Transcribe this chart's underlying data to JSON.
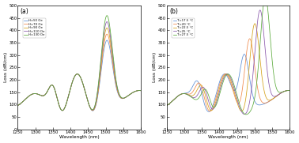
{
  "panel_a": {
    "label": "(a)",
    "xlabel": "Wavelength (nm)",
    "ylabel": "Loss (dB/cm)",
    "xlim": [
      1250,
      1600
    ],
    "ylim": [
      0,
      500
    ],
    "yticks": [
      0,
      50,
      100,
      150,
      200,
      250,
      300,
      350,
      400,
      450,
      500
    ],
    "xticks": [
      1250,
      1300,
      1350,
      1400,
      1450,
      1500,
      1550,
      1600
    ],
    "series": [
      {
        "label": "H=50 Oe",
        "color": "#5b8ed6",
        "amp_shift": 0.0
      },
      {
        "label": "H=70 Oe",
        "color": "#f0894a",
        "amp_shift": 1.0
      },
      {
        "label": "H=90 Oe",
        "color": "#d4a017",
        "amp_shift": 2.0
      },
      {
        "label": "H=110 Oe",
        "color": "#8855aa",
        "amp_shift": 3.0
      },
      {
        "label": "H=130 Oe",
        "color": "#5aaa3a",
        "amp_shift": 4.0
      }
    ]
  },
  "panel_b": {
    "label": "(b)",
    "xlabel": "Wavelength (nm)",
    "ylabel": "Loss (dB/cm)",
    "xlim": [
      1250,
      1600
    ],
    "ylim": [
      0,
      500
    ],
    "yticks": [
      0,
      50,
      100,
      150,
      200,
      250,
      300,
      350,
      400,
      450,
      500
    ],
    "xticks": [
      1250,
      1300,
      1350,
      1400,
      1450,
      1500,
      1550,
      1600
    ],
    "series": [
      {
        "label": "T=17.5 °C",
        "color": "#5b8ed6",
        "p1_shift": -40,
        "p3_shift": -30
      },
      {
        "label": "T=20 °C",
        "color": "#f0894a",
        "p1_shift": -20,
        "p3_shift": -15
      },
      {
        "label": "T=22.5 °C",
        "color": "#d4a017",
        "p1_shift": 0,
        "p3_shift": 0
      },
      {
        "label": "T=25 °C",
        "color": "#8855aa",
        "p1_shift": 20,
        "p3_shift": 15
      },
      {
        "label": "T=27.5 °C",
        "color": "#5aaa3a",
        "p1_shift": 40,
        "p3_shift": 30
      }
    ]
  }
}
